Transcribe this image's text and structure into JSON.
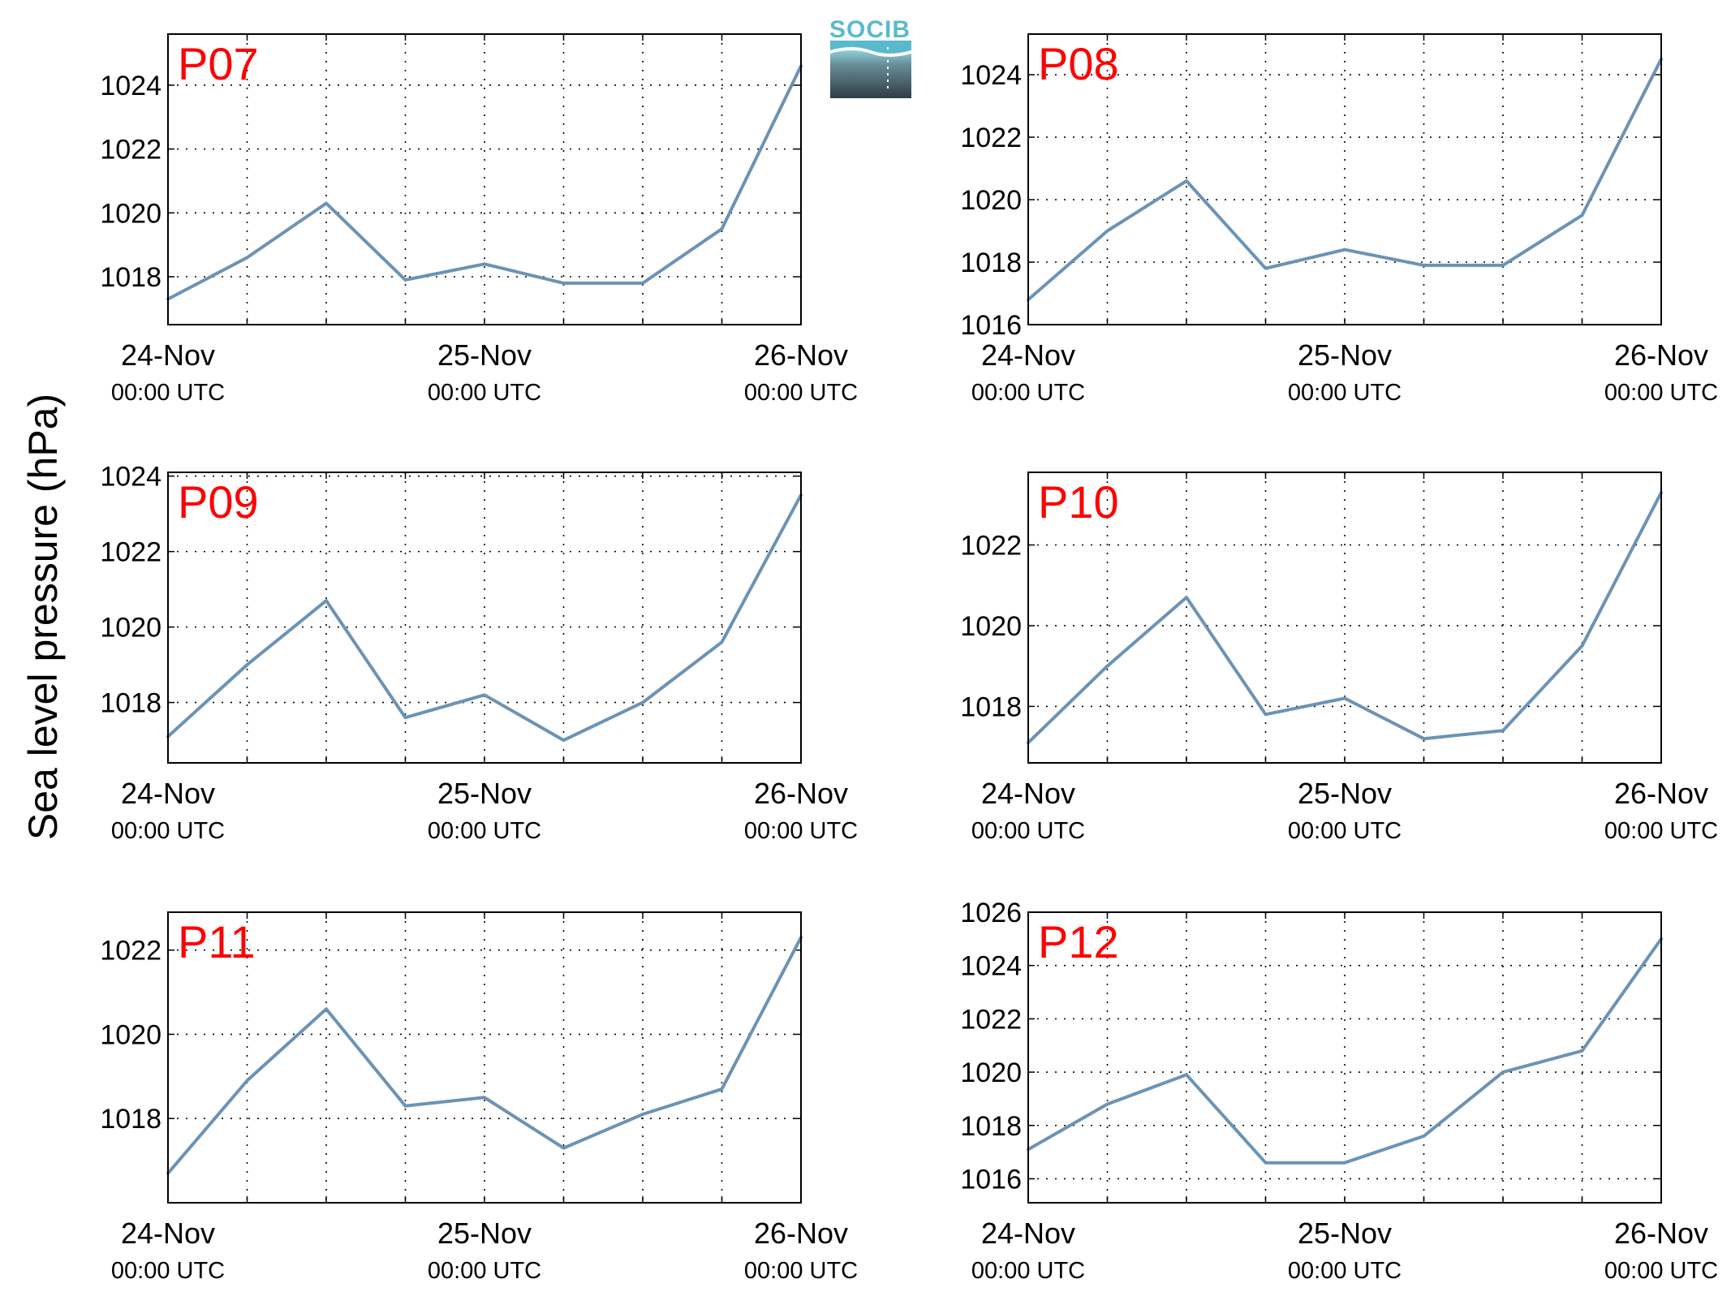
{
  "ylabel": "Sea level pressure (hPa)",
  "logo": {
    "text": "SOCIB",
    "colors": {
      "top": "#5bb9cc",
      "bottom": "#2e3b45"
    }
  },
  "line_color": "#6b93b5",
  "label_color": "#ff0000",
  "xaxis": {
    "ticks": [
      {
        "day": "24-Nov",
        "time": "00:00 UTC"
      },
      {
        "day": "25-Nov",
        "time": "00:00 UTC"
      },
      {
        "day": "26-Nov",
        "time": "00:00 UTC"
      }
    ]
  },
  "chart_data": [
    {
      "type": "line",
      "title": "P07",
      "x_range": [
        "24-Nov 00:00 UTC",
        "26-Nov 00:00 UTC"
      ],
      "ylim": [
        1016.5,
        1025.6
      ],
      "yticks": [
        1018,
        1020,
        1022,
        1024
      ],
      "x": [
        "24-Nov 00:00",
        "24-Nov 06:00",
        "24-Nov 12:00",
        "24-Nov 18:00",
        "25-Nov 00:00",
        "25-Nov 06:00",
        "25-Nov 12:00",
        "25-Nov 18:00",
        "26-Nov 00:00"
      ],
      "values": [
        1017.3,
        1018.6,
        1020.3,
        1017.9,
        1018.4,
        1017.8,
        1017.8,
        1019.5,
        1024.6
      ],
      "grid": true
    },
    {
      "type": "line",
      "title": "P08",
      "x_range": [
        "24-Nov 00:00 UTC",
        "26-Nov 00:00 UTC"
      ],
      "ylim": [
        1016,
        1025.3
      ],
      "yticks": [
        1016,
        1018,
        1020,
        1022,
        1024
      ],
      "x": [
        "24-Nov 00:00",
        "24-Nov 06:00",
        "24-Nov 12:00",
        "24-Nov 18:00",
        "25-Nov 00:00",
        "25-Nov 06:00",
        "25-Nov 12:00",
        "25-Nov 18:00",
        "26-Nov 00:00"
      ],
      "values": [
        1016.8,
        1019.0,
        1020.6,
        1017.8,
        1018.4,
        1017.9,
        1017.9,
        1019.5,
        1024.5
      ],
      "grid": true
    },
    {
      "type": "line",
      "title": "P09",
      "x_range": [
        "24-Nov 00:00 UTC",
        "26-Nov 00:00 UTC"
      ],
      "ylim": [
        1016.4,
        1024.1
      ],
      "yticks": [
        1018,
        1020,
        1022,
        1024
      ],
      "x": [
        "24-Nov 00:00",
        "24-Nov 06:00",
        "24-Nov 12:00",
        "24-Nov 18:00",
        "25-Nov 00:00",
        "25-Nov 06:00",
        "25-Nov 12:00",
        "25-Nov 18:00",
        "26-Nov 00:00"
      ],
      "values": [
        1017.1,
        1019.0,
        1020.7,
        1017.6,
        1018.2,
        1017.0,
        1018.0,
        1019.6,
        1023.5
      ],
      "grid": true
    },
    {
      "type": "line",
      "title": "P10",
      "x_range": [
        "24-Nov 00:00 UTC",
        "26-Nov 00:00 UTC"
      ],
      "ylim": [
        1016.6,
        1023.8
      ],
      "yticks": [
        1018,
        1020,
        1022
      ],
      "x": [
        "24-Nov 00:00",
        "24-Nov 06:00",
        "24-Nov 12:00",
        "24-Nov 18:00",
        "25-Nov 00:00",
        "25-Nov 06:00",
        "25-Nov 12:00",
        "25-Nov 18:00",
        "26-Nov 00:00"
      ],
      "values": [
        1017.1,
        1019.0,
        1020.7,
        1017.8,
        1018.2,
        1017.2,
        1017.4,
        1019.5,
        1023.3
      ],
      "grid": true
    },
    {
      "type": "line",
      "title": "P11",
      "x_range": [
        "24-Nov 00:00 UTC",
        "26-Nov 00:00 UTC"
      ],
      "ylim": [
        1016.0,
        1022.9
      ],
      "yticks": [
        1018,
        1020,
        1022
      ],
      "x": [
        "24-Nov 00:00",
        "24-Nov 06:00",
        "24-Nov 12:00",
        "24-Nov 18:00",
        "25-Nov 00:00",
        "25-Nov 06:00",
        "25-Nov 12:00",
        "25-Nov 18:00",
        "26-Nov 00:00"
      ],
      "values": [
        1016.7,
        1018.9,
        1020.6,
        1018.3,
        1018.5,
        1017.3,
        1018.1,
        1018.7,
        1022.3
      ],
      "grid": true
    },
    {
      "type": "line",
      "title": "P12",
      "x_range": [
        "24-Nov 00:00 UTC",
        "26-Nov 00:00 UTC"
      ],
      "ylim": [
        1015.1,
        1026
      ],
      "yticks": [
        1016,
        1018,
        1020,
        1022,
        1024,
        1026
      ],
      "x": [
        "24-Nov 00:00",
        "24-Nov 06:00",
        "24-Nov 12:00",
        "24-Nov 18:00",
        "25-Nov 00:00",
        "25-Nov 06:00",
        "25-Nov 12:00",
        "25-Nov 18:00",
        "26-Nov 00:00"
      ],
      "values": [
        1017.1,
        1018.8,
        1019.9,
        1016.6,
        1016.6,
        1017.6,
        1020.0,
        1020.8,
        1025.0
      ],
      "grid": true
    }
  ]
}
